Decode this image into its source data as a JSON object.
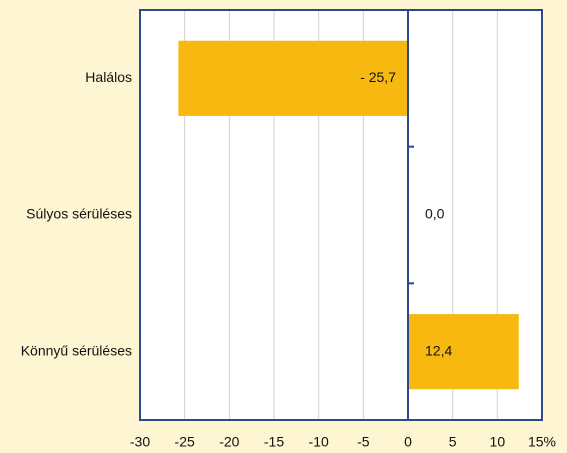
{
  "chart_data": {
    "type": "barh",
    "categories": [
      "Halálos",
      "Súlyos sérüléses",
      "Könnyű sérüléses"
    ],
    "values": [
      -25.7,
      0.0,
      12.4
    ],
    "value_labels": [
      "- 25,7",
      "0,0",
      "12,4"
    ],
    "color": "#f7b90f",
    "xlim": [
      -30,
      15
    ],
    "xticks": [
      -30,
      -25,
      -20,
      -15,
      -10,
      -5,
      0,
      5,
      10,
      {
        "value": 15,
        "label": "15%"
      }
    ],
    "grid": true
  }
}
